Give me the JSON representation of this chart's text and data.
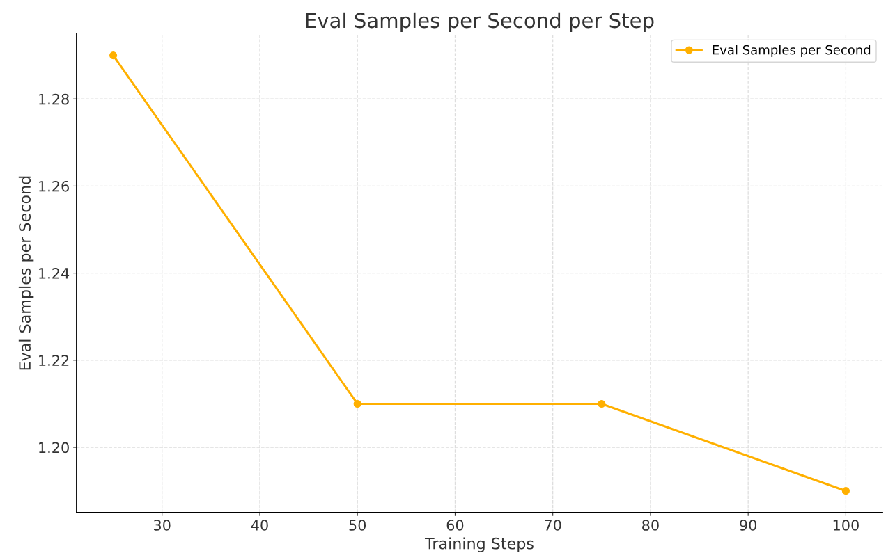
{
  "chart_data": {
    "type": "line",
    "title": "Eval Samples per Second per Step",
    "xlabel": "Training Steps",
    "ylabel": "Eval Samples per Second",
    "x": [
      25,
      50,
      75,
      100
    ],
    "series": [
      {
        "name": "Eval Samples per Second",
        "color": "#ffb000",
        "values": [
          1.29,
          1.21,
          1.21,
          1.19
        ]
      }
    ],
    "xlim": [
      21.25,
      103.75
    ],
    "xticks": [
      30,
      40,
      50,
      60,
      70,
      80,
      90,
      100
    ],
    "ylim": [
      1.185,
      1.295
    ],
    "yticks": [
      {
        "value": 1.2,
        "label": "1.20"
      },
      {
        "value": 1.22,
        "label": "1.22"
      },
      {
        "value": 1.24,
        "label": "1.24"
      },
      {
        "value": 1.26,
        "label": "1.26"
      },
      {
        "value": 1.28,
        "label": "1.28"
      }
    ],
    "grid": true,
    "legend": "top right",
    "marker": "circle",
    "line_style": "solid"
  }
}
